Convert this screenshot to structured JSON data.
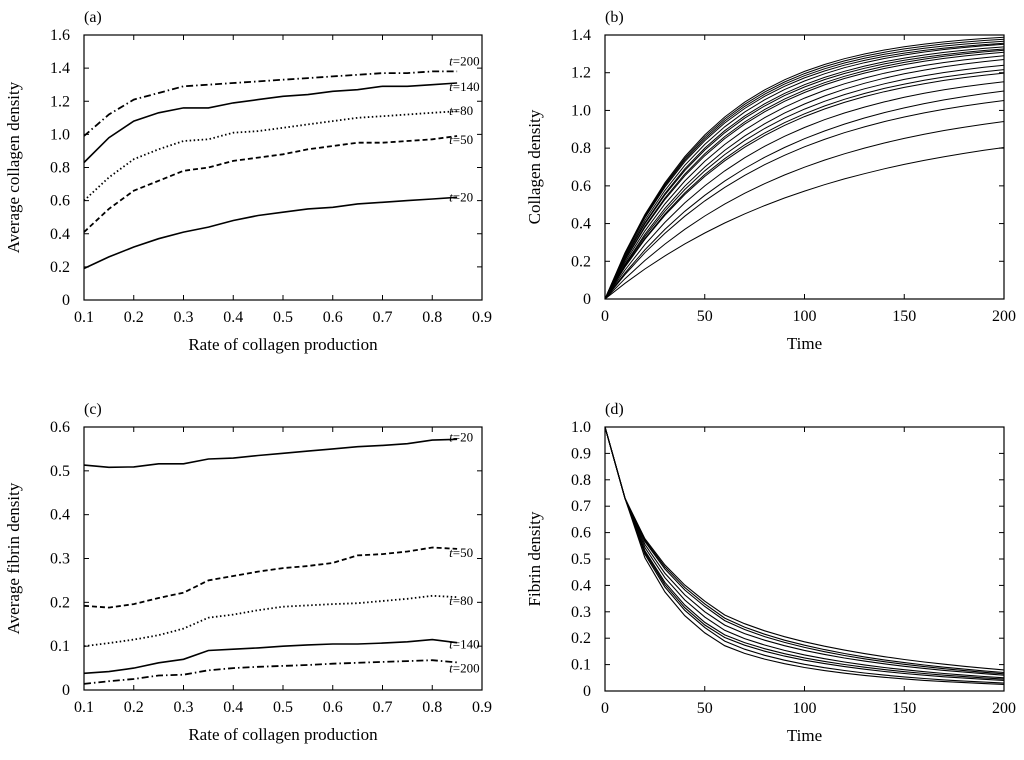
{
  "chart_data": [
    {
      "id": "a",
      "type": "line",
      "panel_label": "(a)",
      "xlabel": "Rate of collagen production",
      "ylabel": "Average collagen density",
      "xlim": [
        0.1,
        0.9
      ],
      "ylim": [
        0,
        1.6
      ],
      "xticks": [
        "0.1",
        "0.2",
        "0.3",
        "0.4",
        "0.5",
        "0.6",
        "0.7",
        "0.8",
        "0.9"
      ],
      "yticks": [
        "0",
        "0.2",
        "0.4",
        "0.6",
        "0.8",
        "1.0",
        "1.2",
        "1.4",
        "1.6"
      ],
      "grid": false,
      "series": [
        {
          "name": "t=20",
          "style": "solid",
          "x": [
            0.1,
            0.15,
            0.2,
            0.25,
            0.3,
            0.35,
            0.4,
            0.45,
            0.5,
            0.55,
            0.6,
            0.65,
            0.7,
            0.75,
            0.8,
            0.85
          ],
          "y": [
            0.19,
            0.26,
            0.32,
            0.37,
            0.41,
            0.44,
            0.48,
            0.51,
            0.53,
            0.55,
            0.56,
            0.58,
            0.59,
            0.6,
            0.61,
            0.62
          ]
        },
        {
          "name": "t=50",
          "style": "dashed",
          "x": [
            0.1,
            0.15,
            0.2,
            0.25,
            0.3,
            0.35,
            0.4,
            0.45,
            0.5,
            0.55,
            0.6,
            0.65,
            0.7,
            0.75,
            0.8,
            0.85
          ],
          "y": [
            0.41,
            0.55,
            0.66,
            0.72,
            0.78,
            0.8,
            0.84,
            0.86,
            0.88,
            0.91,
            0.93,
            0.95,
            0.95,
            0.96,
            0.97,
            0.99
          ]
        },
        {
          "name": "t=80",
          "style": "dotted",
          "x": [
            0.1,
            0.15,
            0.2,
            0.25,
            0.3,
            0.35,
            0.4,
            0.45,
            0.5,
            0.55,
            0.6,
            0.65,
            0.7,
            0.75,
            0.8,
            0.85
          ],
          "y": [
            0.6,
            0.74,
            0.85,
            0.91,
            0.96,
            0.97,
            1.01,
            1.02,
            1.04,
            1.06,
            1.08,
            1.1,
            1.11,
            1.12,
            1.13,
            1.14
          ]
        },
        {
          "name": "t=140",
          "style": "solid",
          "x": [
            0.1,
            0.15,
            0.2,
            0.25,
            0.3,
            0.35,
            0.4,
            0.45,
            0.5,
            0.55,
            0.6,
            0.65,
            0.7,
            0.75,
            0.8,
            0.85
          ],
          "y": [
            0.83,
            0.98,
            1.08,
            1.13,
            1.16,
            1.16,
            1.19,
            1.21,
            1.23,
            1.24,
            1.26,
            1.27,
            1.29,
            1.29,
            1.3,
            1.31
          ]
        },
        {
          "name": "t=200",
          "style": "dashdot",
          "x": [
            0.1,
            0.15,
            0.2,
            0.25,
            0.3,
            0.35,
            0.4,
            0.45,
            0.5,
            0.55,
            0.6,
            0.65,
            0.7,
            0.75,
            0.8,
            0.85
          ],
          "y": [
            0.99,
            1.12,
            1.21,
            1.25,
            1.29,
            1.3,
            1.31,
            1.32,
            1.33,
            1.34,
            1.35,
            1.36,
            1.37,
            1.37,
            1.38,
            1.38
          ]
        }
      ]
    },
    {
      "id": "b",
      "type": "line",
      "panel_label": "(b)",
      "xlabel": "Time",
      "ylabel": "Collagen density",
      "xlim": [
        0,
        200
      ],
      "ylim": [
        0,
        1.4
      ],
      "xticks": [
        "0",
        "50",
        "100",
        "150",
        "200"
      ],
      "yticks": [
        "0",
        "0.2",
        "0.4",
        "0.6",
        "0.8",
        "1.0",
        "1.2",
        "1.4"
      ],
      "grid": false,
      "x": [
        0,
        10,
        20,
        30,
        40,
        50,
        60,
        70,
        80,
        90,
        100,
        110,
        120,
        130,
        140,
        150,
        160,
        170,
        180,
        190,
        200
      ],
      "curve_plateaus": [
        1.42,
        1.41,
        1.4,
        1.39,
        1.39,
        1.38,
        1.37,
        1.37,
        1.36,
        1.35,
        1.34,
        1.31,
        1.29,
        1.27,
        1.24,
        1.21,
        1.16,
        1.07,
        0.96
      ],
      "curve_y_at_50": [
        0.87,
        0.86,
        0.85,
        0.84,
        0.82,
        0.8,
        0.79,
        0.77,
        0.76,
        0.73,
        0.7,
        0.68,
        0.66,
        0.65,
        0.6,
        0.55,
        0.52,
        0.44,
        0.35
      ]
    },
    {
      "id": "c",
      "type": "line",
      "panel_label": "(c)",
      "xlabel": "Rate of collagen production",
      "ylabel": "Average fibrin density",
      "xlim": [
        0.1,
        0.9
      ],
      "ylim": [
        0,
        0.6
      ],
      "xticks": [
        "0.1",
        "0.2",
        "0.3",
        "0.4",
        "0.5",
        "0.6",
        "0.7",
        "0.8",
        "0.9"
      ],
      "yticks": [
        "0",
        "0.1",
        "0.2",
        "0.3",
        "0.4",
        "0.5",
        "0.6"
      ],
      "grid": false,
      "series": [
        {
          "name": "t=20",
          "style": "solid",
          "x": [
            0.1,
            0.15,
            0.2,
            0.25,
            0.3,
            0.35,
            0.4,
            0.45,
            0.5,
            0.55,
            0.6,
            0.65,
            0.7,
            0.75,
            0.8,
            0.85
          ],
          "y": [
            0.513,
            0.508,
            0.509,
            0.516,
            0.516,
            0.527,
            0.529,
            0.535,
            0.54,
            0.545,
            0.55,
            0.555,
            0.558,
            0.562,
            0.57,
            0.572
          ]
        },
        {
          "name": "t=50",
          "style": "dashed",
          "x": [
            0.1,
            0.15,
            0.2,
            0.25,
            0.3,
            0.35,
            0.4,
            0.45,
            0.5,
            0.55,
            0.6,
            0.65,
            0.7,
            0.75,
            0.8,
            0.85
          ],
          "y": [
            0.192,
            0.188,
            0.196,
            0.21,
            0.222,
            0.25,
            0.26,
            0.27,
            0.278,
            0.283,
            0.29,
            0.307,
            0.31,
            0.316,
            0.325,
            0.322
          ]
        },
        {
          "name": "t=80",
          "style": "dotted",
          "x": [
            0.1,
            0.15,
            0.2,
            0.25,
            0.3,
            0.35,
            0.4,
            0.45,
            0.5,
            0.55,
            0.6,
            0.65,
            0.7,
            0.75,
            0.8,
            0.85
          ],
          "y": [
            0.1,
            0.107,
            0.115,
            0.125,
            0.14,
            0.165,
            0.172,
            0.182,
            0.19,
            0.193,
            0.196,
            0.198,
            0.203,
            0.208,
            0.215,
            0.212
          ]
        },
        {
          "name": "t=140",
          "style": "solid",
          "x": [
            0.1,
            0.15,
            0.2,
            0.25,
            0.3,
            0.35,
            0.4,
            0.45,
            0.5,
            0.55,
            0.6,
            0.65,
            0.7,
            0.75,
            0.8,
            0.85
          ],
          "y": [
            0.038,
            0.042,
            0.05,
            0.062,
            0.07,
            0.09,
            0.093,
            0.096,
            0.1,
            0.103,
            0.105,
            0.105,
            0.107,
            0.11,
            0.115,
            0.108
          ]
        },
        {
          "name": "t=200",
          "style": "dashdot",
          "x": [
            0.1,
            0.15,
            0.2,
            0.25,
            0.3,
            0.35,
            0.4,
            0.45,
            0.5,
            0.55,
            0.6,
            0.65,
            0.7,
            0.75,
            0.8,
            0.85
          ],
          "y": [
            0.014,
            0.02,
            0.025,
            0.033,
            0.035,
            0.045,
            0.05,
            0.053,
            0.055,
            0.057,
            0.06,
            0.062,
            0.064,
            0.066,
            0.068,
            0.063
          ]
        }
      ]
    },
    {
      "id": "d",
      "type": "line",
      "panel_label": "(d)",
      "xlabel": "Time",
      "ylabel": "Fibrin density",
      "xlim": [
        0,
        200
      ],
      "ylim": [
        0,
        1.0
      ],
      "xticks": [
        "0",
        "50",
        "100",
        "150",
        "200"
      ],
      "yticks": [
        "0",
        "0.1",
        "0.2",
        "0.3",
        "0.4",
        "0.5",
        "0.6",
        "0.7",
        "0.8",
        "0.9",
        "1.0"
      ],
      "grid": false,
      "x": [
        0,
        10,
        20,
        30,
        40,
        50,
        60,
        70,
        80,
        90,
        100,
        110,
        120,
        130,
        140,
        150,
        160,
        170,
        180,
        190,
        200
      ],
      "curve_y_at_50": [
        0.34,
        0.33,
        0.32,
        0.3,
        0.28,
        0.26,
        0.25,
        0.24,
        0.22
      ],
      "curve_y_at_200": [
        0.08,
        0.07,
        0.065,
        0.06,
        0.05,
        0.045,
        0.04,
        0.03,
        0.025
      ]
    }
  ]
}
